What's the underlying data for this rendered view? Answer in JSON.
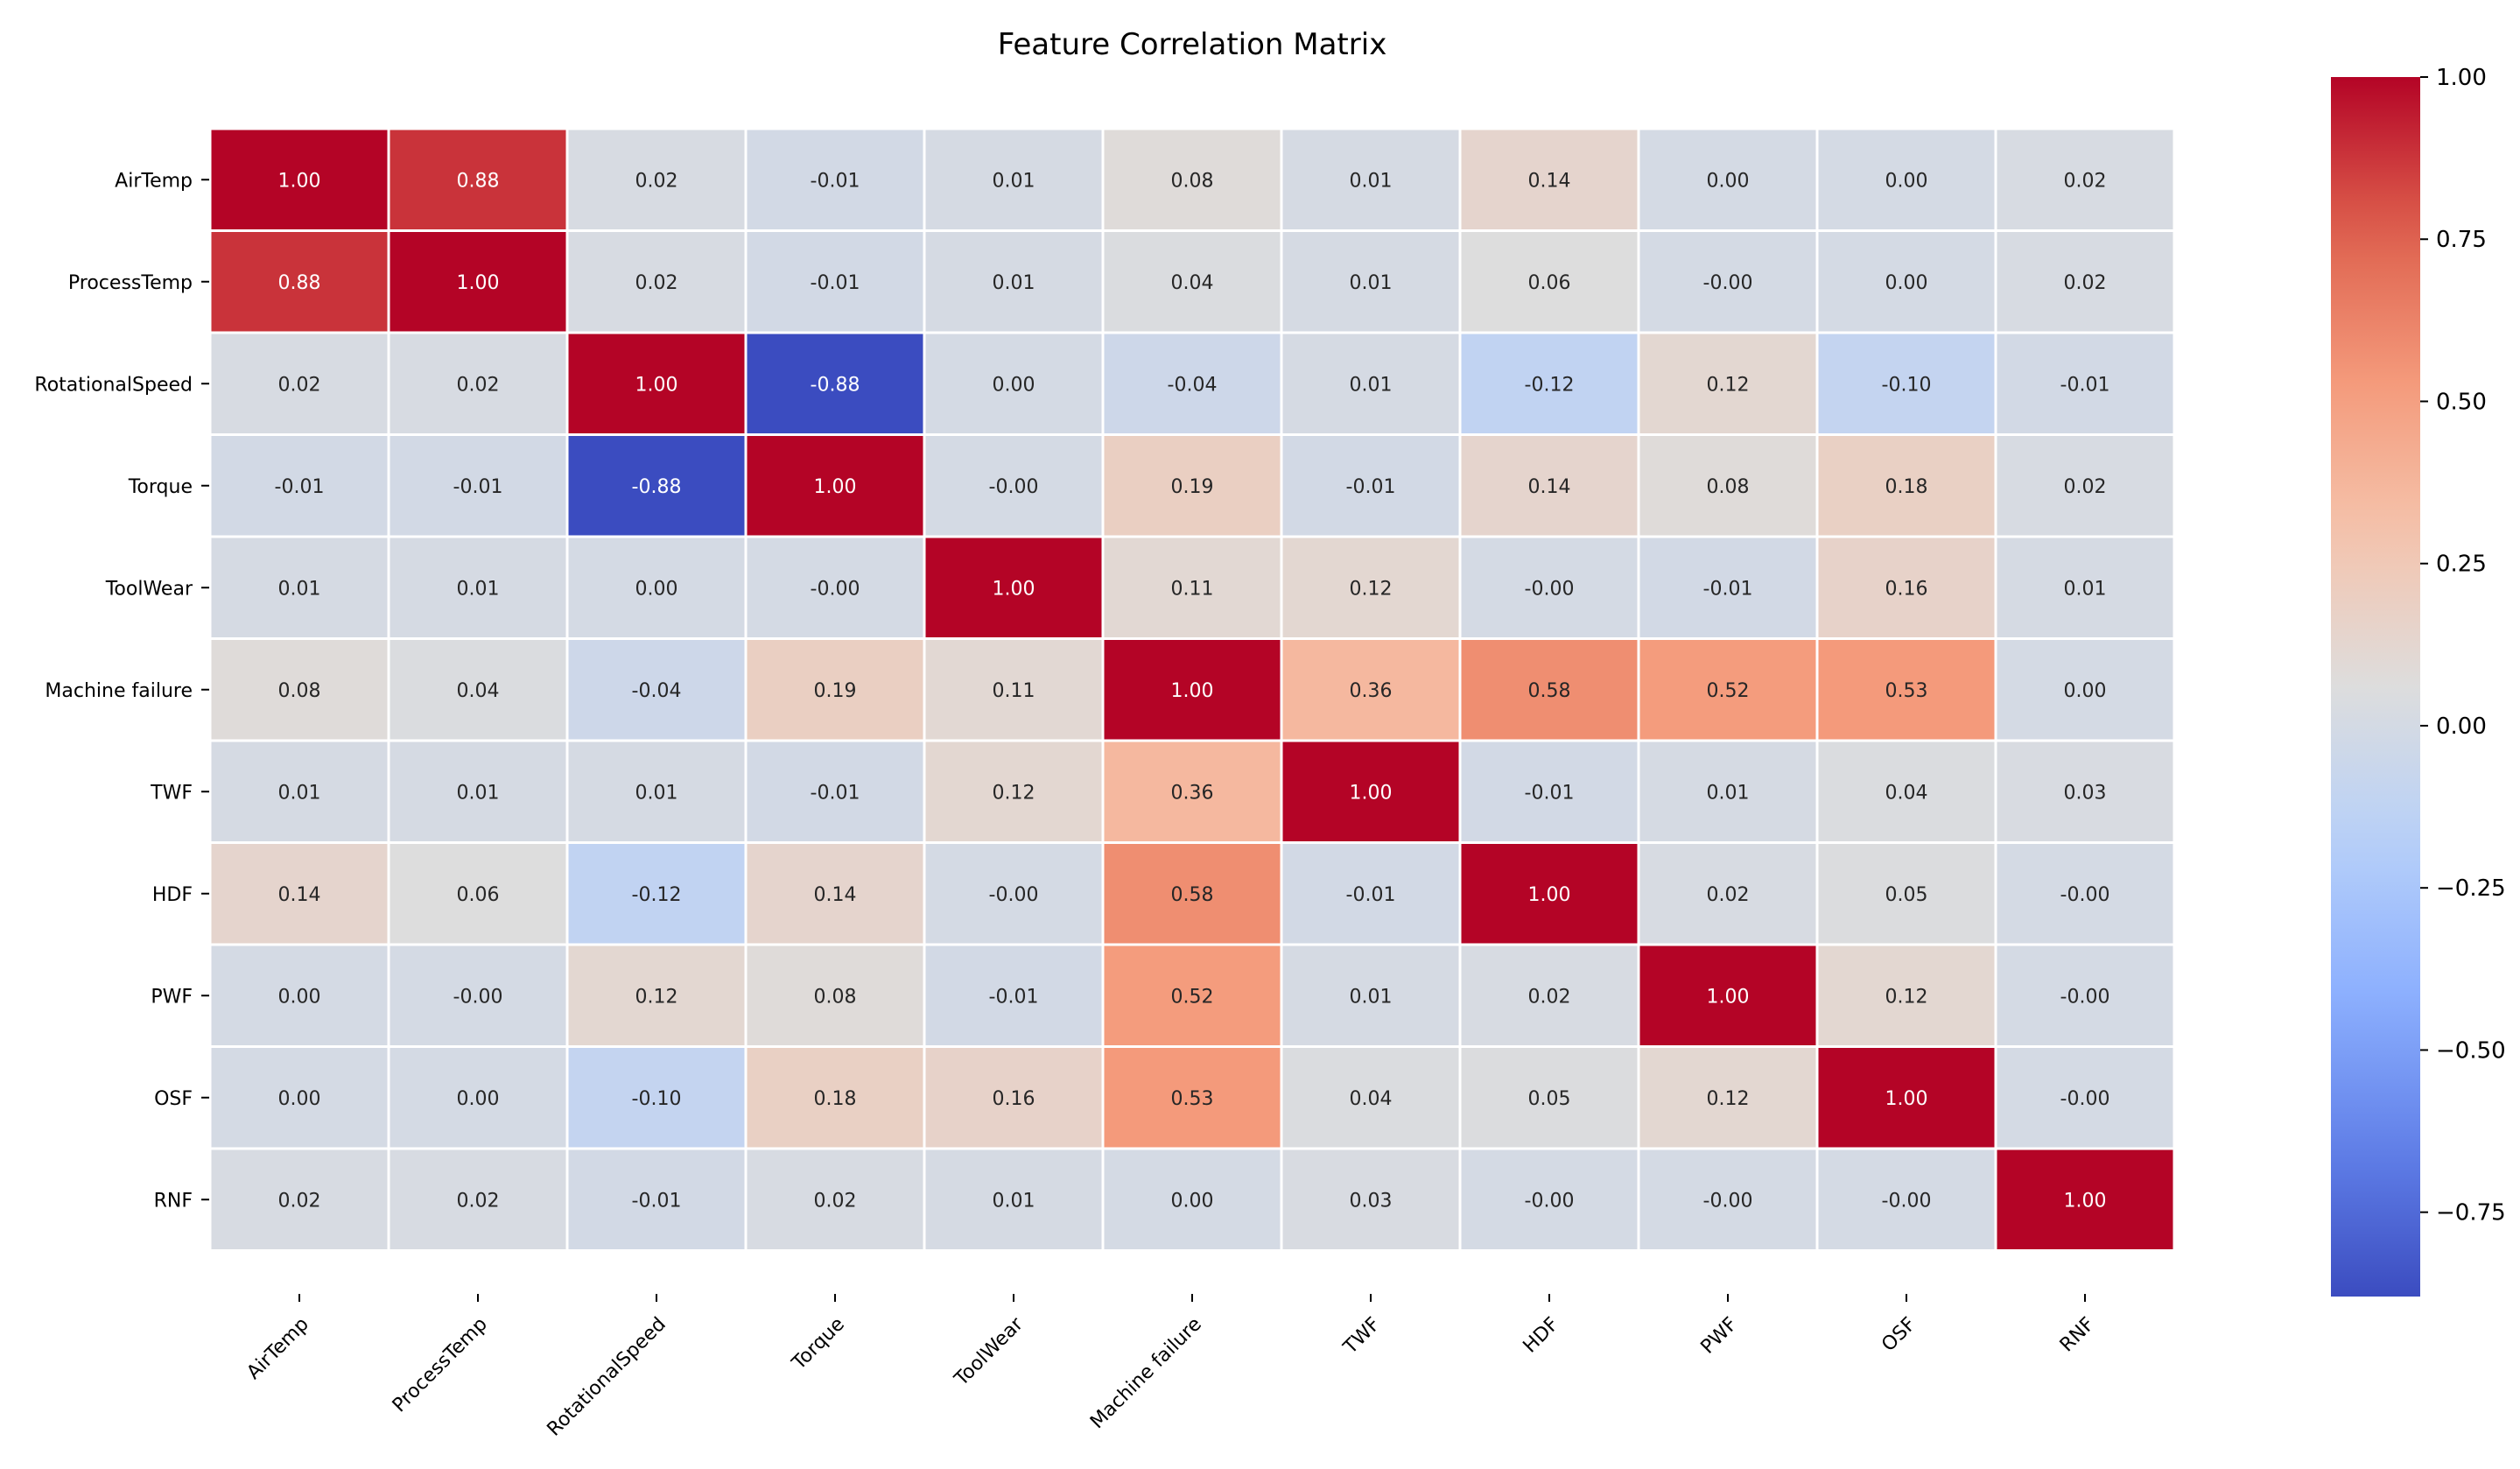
{
  "chart_data": {
    "type": "heatmap",
    "title": "Feature Correlation Matrix",
    "xlabel": "",
    "ylabel": "",
    "colormap": "coolwarm",
    "value_format": "2 decimals",
    "vmin": -0.88,
    "vmax": 1.0,
    "color_low": "#3b4cc0",
    "color_mid": "#dddddd",
    "color_high": "#b40426",
    "cell_border_color": "#ffffff",
    "rows": [
      "AirTemp",
      "ProcessTemp",
      "RotationalSpeed",
      "Torque",
      "ToolWear",
      "Machine failure",
      "TWF",
      "HDF",
      "PWF",
      "OSF",
      "RNF"
    ],
    "columns": [
      "AirTemp",
      "ProcessTemp",
      "RotationalSpeed",
      "Torque",
      "ToolWear",
      "Machine failure",
      "TWF",
      "HDF",
      "PWF",
      "OSF",
      "RNF"
    ],
    "labels": [
      [
        "1.00",
        "0.88",
        "0.02",
        "-0.01",
        "0.01",
        "0.08",
        "0.01",
        "0.14",
        "0.00",
        "0.00",
        "0.02"
      ],
      [
        "0.88",
        "1.00",
        "0.02",
        "-0.01",
        "0.01",
        "0.04",
        "0.01",
        "0.06",
        "-0.00",
        "0.00",
        "0.02"
      ],
      [
        "0.02",
        "0.02",
        "1.00",
        "-0.88",
        "0.00",
        "-0.04",
        "0.01",
        "-0.12",
        "0.12",
        "-0.10",
        "-0.01"
      ],
      [
        "-0.01",
        "-0.01",
        "-0.88",
        "1.00",
        "-0.00",
        "0.19",
        "-0.01",
        "0.14",
        "0.08",
        "0.18",
        "0.02"
      ],
      [
        "0.01",
        "0.01",
        "0.00",
        "-0.00",
        "1.00",
        "0.11",
        "0.12",
        "-0.00",
        "-0.01",
        "0.16",
        "0.01"
      ],
      [
        "0.08",
        "0.04",
        "-0.04",
        "0.19",
        "0.11",
        "1.00",
        "0.36",
        "0.58",
        "0.52",
        "0.53",
        "0.00"
      ],
      [
        "0.01",
        "0.01",
        "0.01",
        "-0.01",
        "0.12",
        "0.36",
        "1.00",
        "-0.01",
        "0.01",
        "0.04",
        "0.03"
      ],
      [
        "0.14",
        "0.06",
        "-0.12",
        "0.14",
        "-0.00",
        "0.58",
        "-0.01",
        "1.00",
        "0.02",
        "0.05",
        "-0.00"
      ],
      [
        "0.00",
        "-0.00",
        "0.12",
        "0.08",
        "-0.01",
        "0.52",
        "0.01",
        "0.02",
        "1.00",
        "0.12",
        "-0.00"
      ],
      [
        "0.00",
        "0.00",
        "-0.10",
        "0.18",
        "0.16",
        "0.53",
        "0.04",
        "0.05",
        "0.12",
        "1.00",
        "-0.00"
      ],
      [
        "0.02",
        "0.02",
        "-0.01",
        "0.02",
        "0.01",
        "0.00",
        "0.03",
        "-0.00",
        "-0.00",
        "-0.00",
        "1.00"
      ]
    ],
    "colorbar": {
      "ticks": [
        1.0,
        0.75,
        0.5,
        0.25,
        0.0,
        -0.25,
        -0.5,
        -0.75
      ],
      "tick_labels": [
        "1.00",
        "0.75",
        "0.50",
        "0.25",
        "0.00",
        "−0.25",
        "−0.50",
        "−0.75"
      ]
    }
  }
}
